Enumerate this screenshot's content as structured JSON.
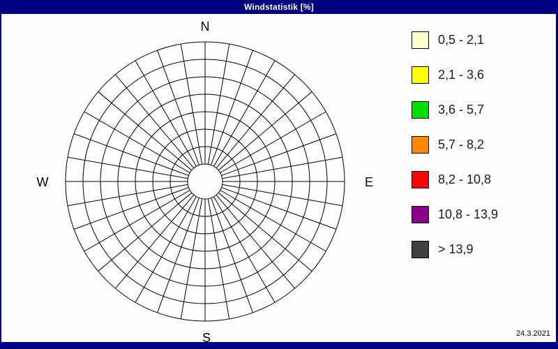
{
  "window": {
    "title": "Windstatistik [%]",
    "date": "24.3.2021"
  },
  "colors": {
    "frame": "#000080",
    "titlebar_text": "#FFFFFF",
    "background": "#FCFDFC",
    "grid_line": "#000000"
  },
  "rose": {
    "labels": {
      "north": "N",
      "east": "E",
      "south": "S",
      "west": "W"
    },
    "sector_count": 36,
    "ring_count": 8,
    "inner_radius": 25,
    "ring_step": 25
  },
  "legend": {
    "items": [
      {
        "label": "0,5 - 2,1",
        "color": "#FFFFCC"
      },
      {
        "label": "2,1 - 3,6",
        "color": "#FFFF00"
      },
      {
        "label": "3,6 - 5,7",
        "color": "#00E000"
      },
      {
        "label": "5,7 - 8,2",
        "color": "#FF8A00"
      },
      {
        "label": "8,2 - 10,8",
        "color": "#FA0505"
      },
      {
        "label": "10,8 - 13,9",
        "color": "#8B008B"
      },
      {
        "label": "> 13,9",
        "color": "#414141"
      }
    ]
  },
  "chart_data": {
    "type": "polar-grid",
    "subtype": "wind-rose",
    "title": "Windstatistik [%]",
    "compass_labels": [
      "N",
      "E",
      "S",
      "W"
    ],
    "sector_count": 36,
    "sector_angle_deg": 10,
    "ring_count": 8,
    "plotted_values": [],
    "note": "Empty wind-rose polar grid; no frequency sectors are filled, only grid lines are visible",
    "legend_bins_percent": [
      "0,5 - 2,1",
      "2,1 - 3,6",
      "3,6 - 5,7",
      "5,7 - 8,2",
      "8,2 - 10,8",
      "10,8 - 13,9",
      "> 13,9"
    ],
    "legend_position": "right",
    "date": "24.3.2021"
  }
}
